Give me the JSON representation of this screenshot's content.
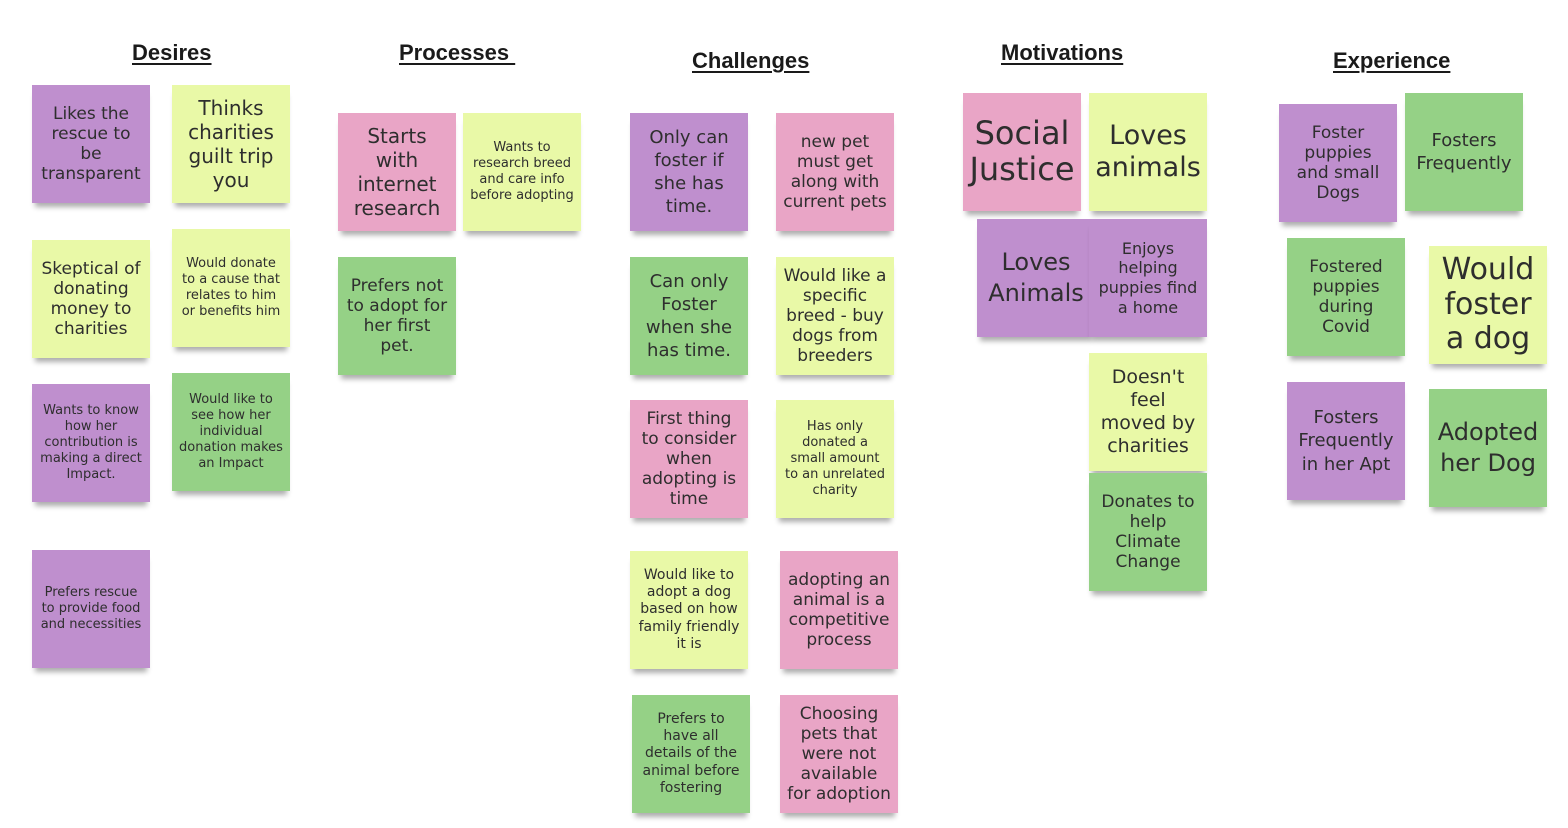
{
  "columns": [
    {
      "heading": "Desires",
      "notes": [
        "Likes the rescue to be transparent",
        "Thinks charities guilt trip you",
        "Skeptical of donating money to charities",
        "Would donate to a cause that relates to him or benefits him",
        "Wants to know how her contribution is making a direct Impact.",
        "Would like to see how her individual donation makes an Impact",
        "Prefers rescue to provide food and necessities"
      ]
    },
    {
      "heading": "Processes ",
      "notes": [
        "Starts with internet research",
        "Wants to research breed and care info before adopting",
        "Prefers not to adopt for her first pet."
      ]
    },
    {
      "heading": "Challenges",
      "notes": [
        "Only can foster if she has time.",
        "new pet must get along with current pets",
        "Can only Foster when she has time.",
        "Would like a specific breed - buy dogs from breeders",
        "First thing to consider when adopting is time",
        "Has only donated a small amount to an unrelated charity",
        "Would like to adopt a dog based on how family friendly it is",
        "adopting an animal is a competitive process",
        "Prefers to have all details of the animal before fostering",
        "Choosing pets that were not available for adoption"
      ]
    },
    {
      "heading": "Motivations",
      "notes": [
        "Social Justice",
        "Loves animals",
        "Loves Animals",
        "Enjoys helping puppies find a home",
        "Doesn't feel moved by charities",
        "Donates to help Climate Change"
      ]
    },
    {
      "heading": "Experience",
      "notes": [
        "Foster puppies and small Dogs",
        "Fosters Frequently",
        "Fostered puppies during Covid",
        "Would foster a dog",
        "Fosters Frequently in her Apt",
        "Adopted her Dog"
      ]
    }
  ],
  "colors": {
    "purple": "#bf8fce",
    "yellow": "#e9f9a7",
    "green": "#95d186",
    "pink": "#e9a5c6"
  }
}
